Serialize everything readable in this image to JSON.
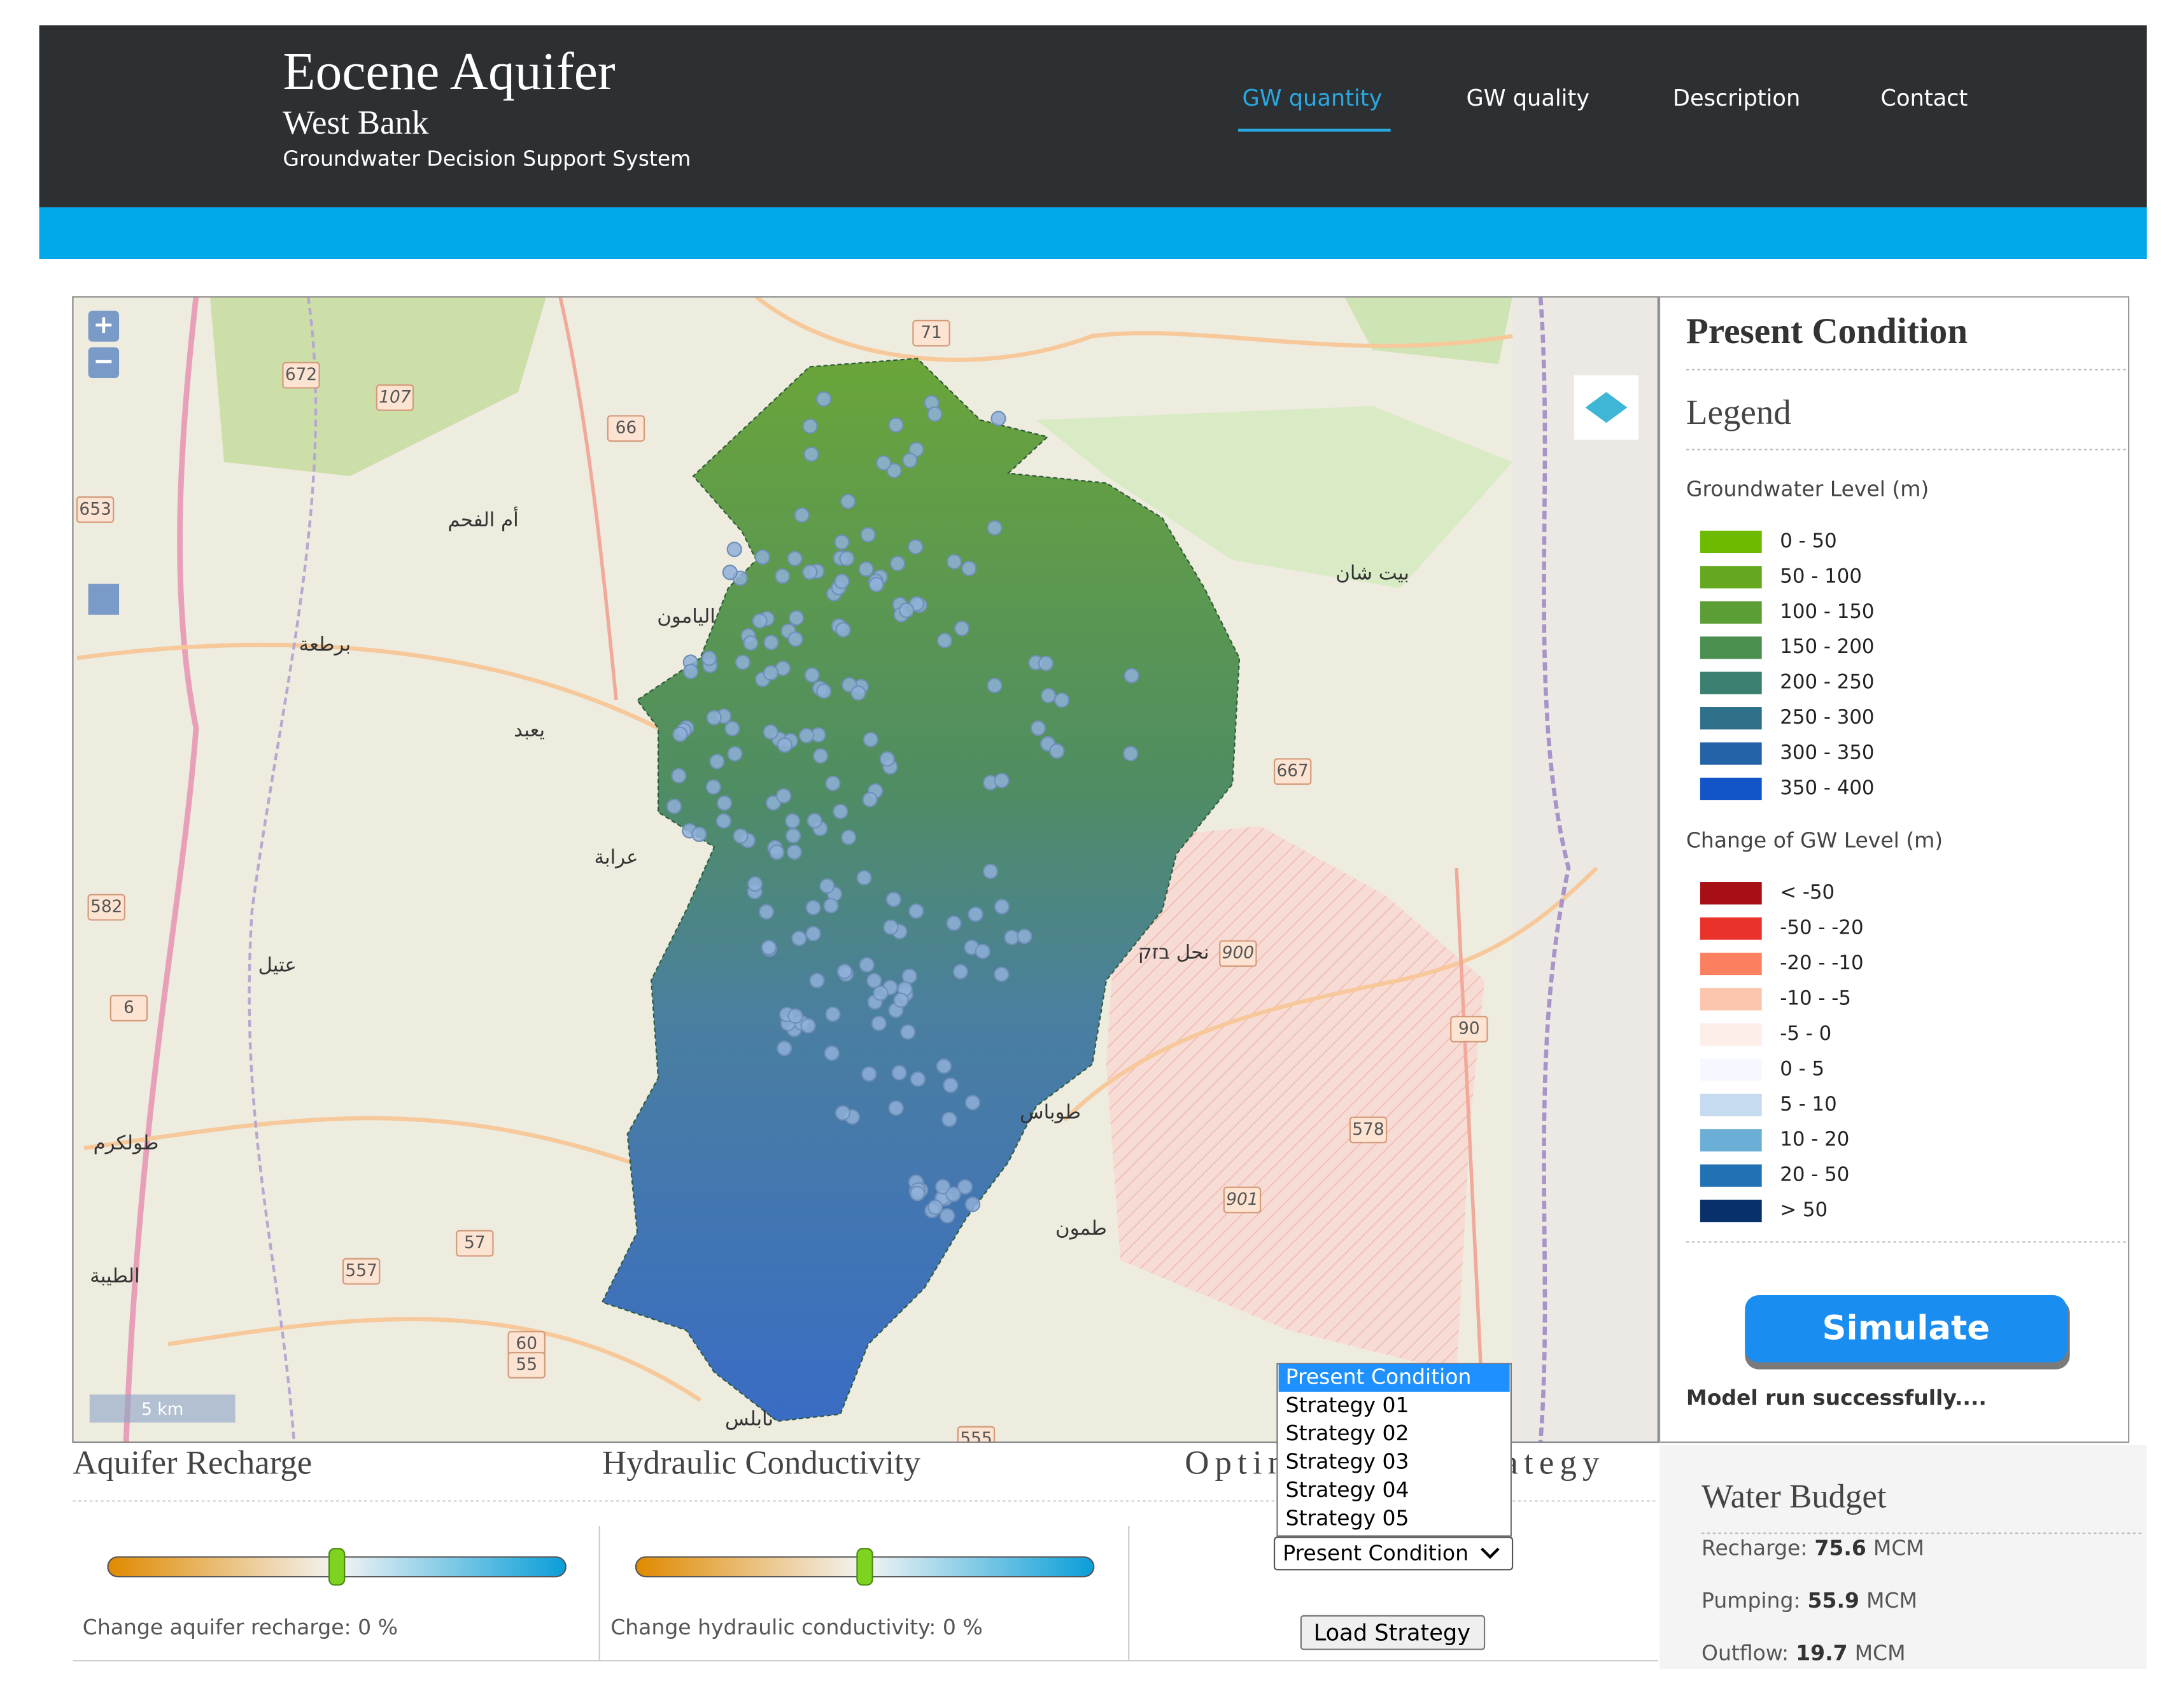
{
  "header": {
    "title": "Eocene Aquifer",
    "subtitle": "West Bank",
    "tagline": "Groundwater Decision Support System"
  },
  "nav": [
    "GW quantity",
    "GW quality",
    "Description",
    "Contact"
  ],
  "map": {
    "zoom_in": "+",
    "zoom_out": "−",
    "scale": "5 km",
    "labels": [
      "672",
      "107",
      "66",
      "71",
      "653",
      "582",
      "6",
      "57",
      "557",
      "60",
      "55",
      "667",
      "90",
      "578",
      "900",
      "901",
      "555",
      "أم الفحم",
      "طولكرم",
      "الطيبة",
      "نابلس",
      "طوباس",
      "طمون",
      "بيت شان",
      "نحل בזק",
      "عرابة",
      "يعبد",
      "اليامون",
      "عتيل",
      "برطعة"
    ]
  },
  "panel": {
    "title": "Present Condition",
    "legend_title": "Legend",
    "gw_level": {
      "title": "Groundwater Level (m)",
      "items": [
        {
          "label": "0 - 50",
          "color": "#6cbb00"
        },
        {
          "label": "50 - 100",
          "color": "#65a81f"
        },
        {
          "label": "100 - 150",
          "color": "#5b9e35"
        },
        {
          "label": "150 - 200",
          "color": "#4a8f4f"
        },
        {
          "label": "200 - 250",
          "color": "#3a7f6f"
        },
        {
          "label": "250 - 300",
          "color": "#2e6f8a"
        },
        {
          "label": "300 - 350",
          "color": "#2563a8"
        },
        {
          "label": "350 - 400",
          "color": "#1255c8"
        }
      ]
    },
    "gw_change": {
      "title": "Change of GW Level (m)",
      "items": [
        {
          "label": "< -50",
          "color": "#a50f15"
        },
        {
          "label": "-50 - -20",
          "color": "#e8322a"
        },
        {
          "label": "-20 - -10",
          "color": "#fb8060"
        },
        {
          "label": "-10 - -5",
          "color": "#fcc5ae"
        },
        {
          "label": "-5 - 0",
          "color": "#fdeeea"
        },
        {
          "label": "0 - 5",
          "color": "#f5f9ff"
        },
        {
          "label": "5 - 10",
          "color": "#c6dbef"
        },
        {
          "label": "10 - 20",
          "color": "#6baed6"
        },
        {
          "label": "20 - 50",
          "color": "#2171b5"
        },
        {
          "label": "> 50",
          "color": "#08306b"
        }
      ]
    },
    "simulate": "Simulate",
    "status": "Model run successfully...."
  },
  "controls": {
    "recharge": {
      "title": "Aquifer Recharge",
      "label": "Change aquifer recharge: 0 %"
    },
    "conductivity": {
      "title": "Hydraulic Conductivity",
      "label": "Change hydraulic conductivity: 0 %"
    },
    "strategy": {
      "title": "Optimization Strategy",
      "selected": "Present Condition",
      "options": [
        "Present Condition",
        "Strategy 01",
        "Strategy 02",
        "Strategy 03",
        "Strategy 04",
        "Strategy 05"
      ],
      "button": "Load Strategy"
    }
  },
  "water_budget": {
    "title": "Water Budget",
    "unit": "MCM",
    "rows": [
      {
        "label": "Recharge:",
        "value": 75.6
      },
      {
        "label": "Pumping:",
        "value": 55.9
      },
      {
        "label": "Outflow:",
        "value": 19.7
      }
    ]
  }
}
